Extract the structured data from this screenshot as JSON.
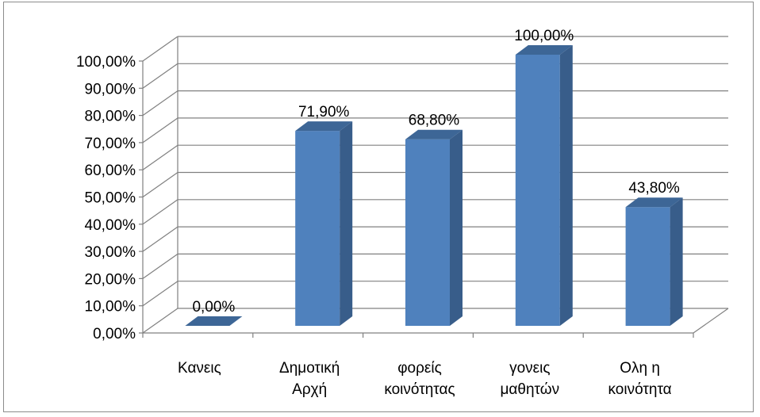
{
  "chart_data": {
    "type": "bar",
    "title": "",
    "xlabel": "",
    "ylabel": "",
    "categories": [
      [
        "Κανεις"
      ],
      [
        "Δημοτική",
        "Αρχή"
      ],
      [
        "φορείς",
        "κοινότητας"
      ],
      [
        "γονεις",
        "μαθητών"
      ],
      [
        "Ολη η",
        "κοινότητα"
      ]
    ],
    "values": [
      0.0,
      71.9,
      68.8,
      100.0,
      43.8
    ],
    "data_labels": [
      "0,00%",
      "71,90%",
      "68,80%",
      "100,00%",
      "43,80%"
    ],
    "yticks": [
      "0,00%",
      "10,00%",
      "20,00%",
      "30,00%",
      "40,00%",
      "50,00%",
      "60,00%",
      "70,00%",
      "80,00%",
      "90,00%",
      "100,00%"
    ],
    "ylim": [
      0,
      100
    ],
    "grid": true,
    "legend": "none",
    "three_d": true,
    "colors": {
      "bar_front": "#4f81bd",
      "bar_side": "#385d8a",
      "bar_top": "#3d6696",
      "grid": "#808080"
    }
  }
}
